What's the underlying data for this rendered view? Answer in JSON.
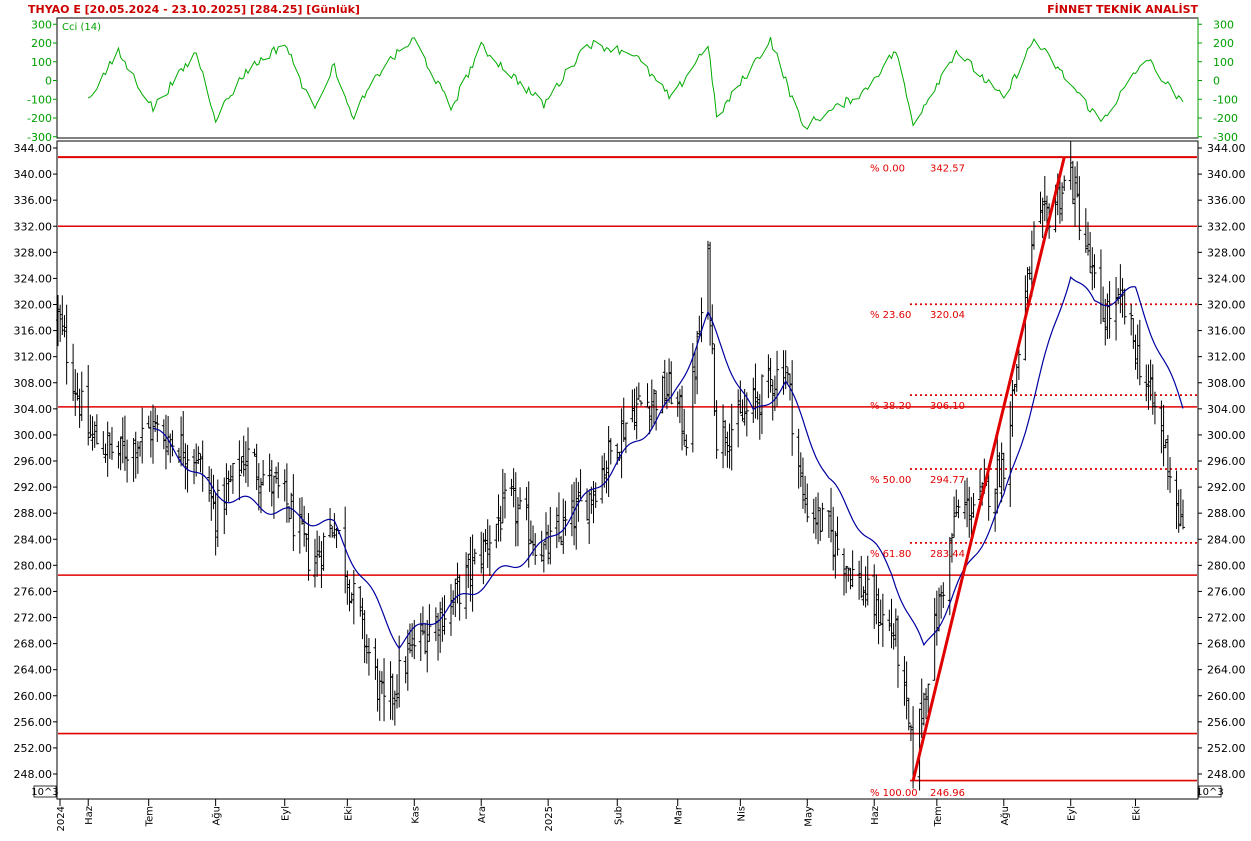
{
  "header": {
    "left": "THYAO E  [20.05.2024 - 23.10.2025]  [284.25]  [Günlük]",
    "right": "FİNNET TEKNİK ANALİST"
  },
  "colors": {
    "price_bars": "#000000",
    "moving_average": "#0000a0",
    "cci": "#00aa00",
    "cci_axis": "#00a000",
    "support_resistance": "#e00000",
    "fib_label": "#e00000",
    "frame": "#000000"
  },
  "cci_panel": {
    "label": "Cci (14)",
    "ticks": [
      "300",
      "200",
      "100",
      "0",
      "-100",
      "-200",
      "-300"
    ]
  },
  "price_panel": {
    "ticks": [
      "344.00",
      "340.00",
      "336.00",
      "332.00",
      "328.00",
      "324.00",
      "320.00",
      "316.00",
      "312.00",
      "308.00",
      "304.00",
      "300.00",
      "296.00",
      "292.00",
      "288.00",
      "284.00",
      "280.00",
      "276.00",
      "272.00",
      "268.00",
      "264.00",
      "260.00",
      "256.00",
      "252.00",
      "248.00"
    ],
    "scale_label": "10^3"
  },
  "horizontal_lines": [
    342.6,
    332.0,
    304.3,
    278.5,
    254.2,
    247.0
  ],
  "fibonacci": [
    {
      "pct": "% 0.00",
      "value": "342.57"
    },
    {
      "pct": "% 23.60",
      "value": "320.04"
    },
    {
      "pct": "% 38.20",
      "value": "306.10"
    },
    {
      "pct": "% 50.00",
      "value": "294.77"
    },
    {
      "pct": "% 61.80",
      "value": "283.44"
    },
    {
      "pct": "% 100.00",
      "value": "246.96"
    }
  ],
  "x_axis": {
    "labels": [
      "2024",
      "Haz",
      "Tem",
      "Ağu",
      "Eyl",
      "Eki",
      "Kas",
      "Ara",
      "2025",
      "Şub",
      "Mar",
      "Nis",
      "May",
      "Haz",
      "Tem",
      "Ağu",
      "Eyl",
      "Eki"
    ]
  },
  "chart_data": {
    "type": "ohlc",
    "title": "THYAO E  [20.05.2024 - 23.10.2025]  [284.25]  [Günlük]",
    "ylim": [
      246,
      345
    ],
    "series_keypoints": [
      {
        "x": "20.05.2024",
        "close": 318
      },
      {
        "x": "03.06.2024",
        "close": 300
      },
      {
        "x": "17.06.2024",
        "close": 297
      },
      {
        "x": "03.07.2024",
        "close": 301
      },
      {
        "x": "23.07.2024",
        "close": 297
      },
      {
        "x": "01.08.2024",
        "close": 288
      },
      {
        "x": "15.08.2024",
        "close": 297
      },
      {
        "x": "02.09.2024",
        "close": 290
      },
      {
        "x": "15.09.2024",
        "close": 280
      },
      {
        "x": "25.09.2024",
        "close": 287
      },
      {
        "x": "03.10.2024",
        "close": 276
      },
      {
        "x": "18.10.2024",
        "close": 258
      },
      {
        "x": "01.11.2024",
        "close": 268
      },
      {
        "x": "18.11.2024",
        "close": 274
      },
      {
        "x": "02.12.2024",
        "close": 282
      },
      {
        "x": "15.12.2024",
        "close": 290
      },
      {
        "x": "31.12.2024",
        "close": 282
      },
      {
        "x": "20.01.2025",
        "close": 290
      },
      {
        "x": "10.02.2025",
        "close": 304
      },
      {
        "x": "28.02.2025",
        "close": 307
      },
      {
        "x": "07.03.2025",
        "close": 300
      },
      {
        "x": "17.03.2025",
        "close": 326
      },
      {
        "x": "21.03.2025",
        "close": 300
      },
      {
        "x": "01.04.2025",
        "close": 302
      },
      {
        "x": "15.04.2025",
        "close": 308
      },
      {
        "x": "22.04.2025",
        "close": 311
      },
      {
        "x": "30.04.2025",
        "close": 290
      },
      {
        "x": "12.05.2025",
        "close": 285
      },
      {
        "x": "28.05.2025",
        "close": 276
      },
      {
        "x": "12.06.2025",
        "close": 269
      },
      {
        "x": "20.06.2025",
        "close": 250
      },
      {
        "x": "01.07.2025",
        "close": 272
      },
      {
        "x": "10.07.2025",
        "close": 288
      },
      {
        "x": "22.07.2025",
        "close": 290
      },
      {
        "x": "01.08.2025",
        "close": 296
      },
      {
        "x": "15.08.2025",
        "close": 330
      },
      {
        "x": "25.08.2025",
        "close": 336
      },
      {
        "x": "01.09.2025",
        "close": 340
      },
      {
        "x": "15.09.2025",
        "close": 318
      },
      {
        "x": "25.09.2025",
        "close": 320
      },
      {
        "x": "06.10.2025",
        "close": 308
      },
      {
        "x": "15.10.2025",
        "close": 298
      },
      {
        "x": "23.10.2025",
        "close": 284.25
      }
    ],
    "ma_keypoints": [
      {
        "x": "03.07.2024",
        "value": 301
      },
      {
        "x": "01.08.2024",
        "value": 291
      },
      {
        "x": "25.09.2024",
        "value": 286
      },
      {
        "x": "25.10.2024",
        "value": 268
      },
      {
        "x": "02.12.2024",
        "value": 277
      },
      {
        "x": "31.12.2024",
        "value": 283
      },
      {
        "x": "28.02.2025",
        "value": 305
      },
      {
        "x": "17.03.2025",
        "value": 318
      },
      {
        "x": "07.04.2025",
        "value": 303
      },
      {
        "x": "22.04.2025",
        "value": 308
      },
      {
        "x": "12.05.2025",
        "value": 293
      },
      {
        "x": "10.06.2025",
        "value": 279
      },
      {
        "x": "25.06.2025",
        "value": 267
      },
      {
        "x": "01.08.2025",
        "value": 290
      },
      {
        "x": "01.09.2025",
        "value": 325
      },
      {
        "x": "12.09.2025",
        "value": 320
      },
      {
        "x": "01.10.2025",
        "value": 322
      },
      {
        "x": "23.10.2025",
        "value": 304
      }
    ],
    "trend_line": {
      "from": {
        "x": "20.06.2025",
        "value": 246.96
      },
      "to": {
        "x": "29.08.2025",
        "value": 342.57
      }
    },
    "cci": {
      "name": "Cci (14)",
      "ylim": [
        -300,
        300
      ],
      "keypoints": [
        {
          "x": "03.06.2024",
          "value": -100
        },
        {
          "x": "17.06.2024",
          "value": 150
        },
        {
          "x": "03.07.2024",
          "value": -150
        },
        {
          "x": "23.07.2024",
          "value": 150
        },
        {
          "x": "01.08.2024",
          "value": -200
        },
        {
          "x": "15.08.2024",
          "value": 50
        },
        {
          "x": "02.09.2024",
          "value": 200
        },
        {
          "x": "15.09.2024",
          "value": -150
        },
        {
          "x": "25.09.2024",
          "value": 80
        },
        {
          "x": "03.10.2024",
          "value": -200
        },
        {
          "x": "18.10.2024",
          "value": 80
        },
        {
          "x": "01.11.2024",
          "value": 220
        },
        {
          "x": "18.11.2024",
          "value": -150
        },
        {
          "x": "02.12.2024",
          "value": 180
        },
        {
          "x": "31.12.2024",
          "value": -130
        },
        {
          "x": "20.01.2025",
          "value": 200
        },
        {
          "x": "10.02.2025",
          "value": 150
        },
        {
          "x": "28.02.2025",
          "value": -100
        },
        {
          "x": "17.03.2025",
          "value": 200
        },
        {
          "x": "21.03.2025",
          "value": -200
        },
        {
          "x": "15.04.2025",
          "value": 220
        },
        {
          "x": "30.04.2025",
          "value": -250
        },
        {
          "x": "28.05.2025",
          "value": -60
        },
        {
          "x": "12.06.2025",
          "value": 160
        },
        {
          "x": "20.06.2025",
          "value": -230
        },
        {
          "x": "10.07.2025",
          "value": 160
        },
        {
          "x": "01.08.2025",
          "value": -100
        },
        {
          "x": "15.08.2025",
          "value": 220
        },
        {
          "x": "15.09.2025",
          "value": -220
        },
        {
          "x": "06.10.2025",
          "value": 120
        },
        {
          "x": "23.10.2025",
          "value": -130
        }
      ]
    }
  }
}
